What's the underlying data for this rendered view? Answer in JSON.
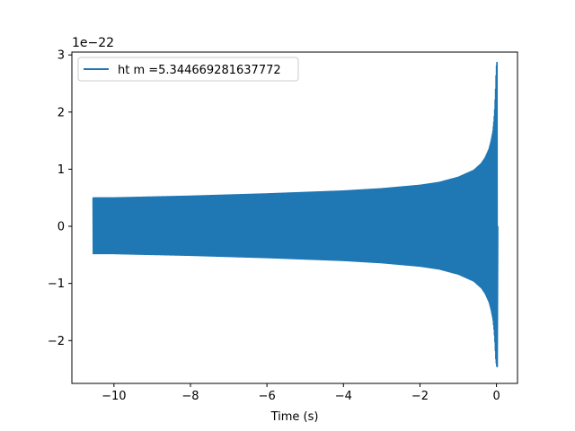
{
  "chart_data": {
    "type": "line",
    "title": "",
    "xlabel": "Time (s)",
    "ylabel": "",
    "y_offset_label": "1e−22",
    "xlim": [
      -11.1,
      0.55
    ],
    "ylim": [
      -2.75,
      3.05
    ],
    "x_ticks": [
      -10,
      -8,
      -6,
      -4,
      -2,
      0
    ],
    "x_tick_labels": [
      "−10",
      "−8",
      "−6",
      "−4",
      "−2",
      "0"
    ],
    "y_ticks": [
      -2,
      -1,
      0,
      1,
      2,
      3
    ],
    "y_tick_labels": [
      "−2",
      "−1",
      "0",
      "1",
      "2",
      "3"
    ],
    "grid": false,
    "legend_position": "upper-left",
    "series": [
      {
        "name": "ht m =5.344669281637772",
        "color": "#1f77b4",
        "style": "dense-oscillation-chirp",
        "t_start": -10.55,
        "t_end": 0.02,
        "envelope": {
          "x": [
            -10.55,
            -10.0,
            -8.0,
            -6.0,
            -4.0,
            -3.0,
            -2.0,
            -1.5,
            -1.0,
            -0.8,
            -0.6,
            -0.4,
            -0.3,
            -0.2,
            -0.15,
            -0.1,
            -0.07,
            -0.05,
            -0.03,
            -0.015,
            0.0
          ],
          "upper": [
            0.5,
            0.5,
            0.53,
            0.57,
            0.62,
            0.66,
            0.72,
            0.77,
            0.86,
            0.92,
            0.98,
            1.1,
            1.2,
            1.35,
            1.48,
            1.65,
            1.85,
            2.05,
            2.35,
            2.65,
            2.87
          ],
          "lower": [
            -0.48,
            -0.48,
            -0.51,
            -0.55,
            -0.6,
            -0.64,
            -0.7,
            -0.75,
            -0.84,
            -0.9,
            -0.96,
            -1.08,
            -1.18,
            -1.33,
            -1.46,
            -1.63,
            -1.83,
            -2.03,
            -2.3,
            -2.4,
            -2.46
          ]
        }
      }
    ]
  }
}
